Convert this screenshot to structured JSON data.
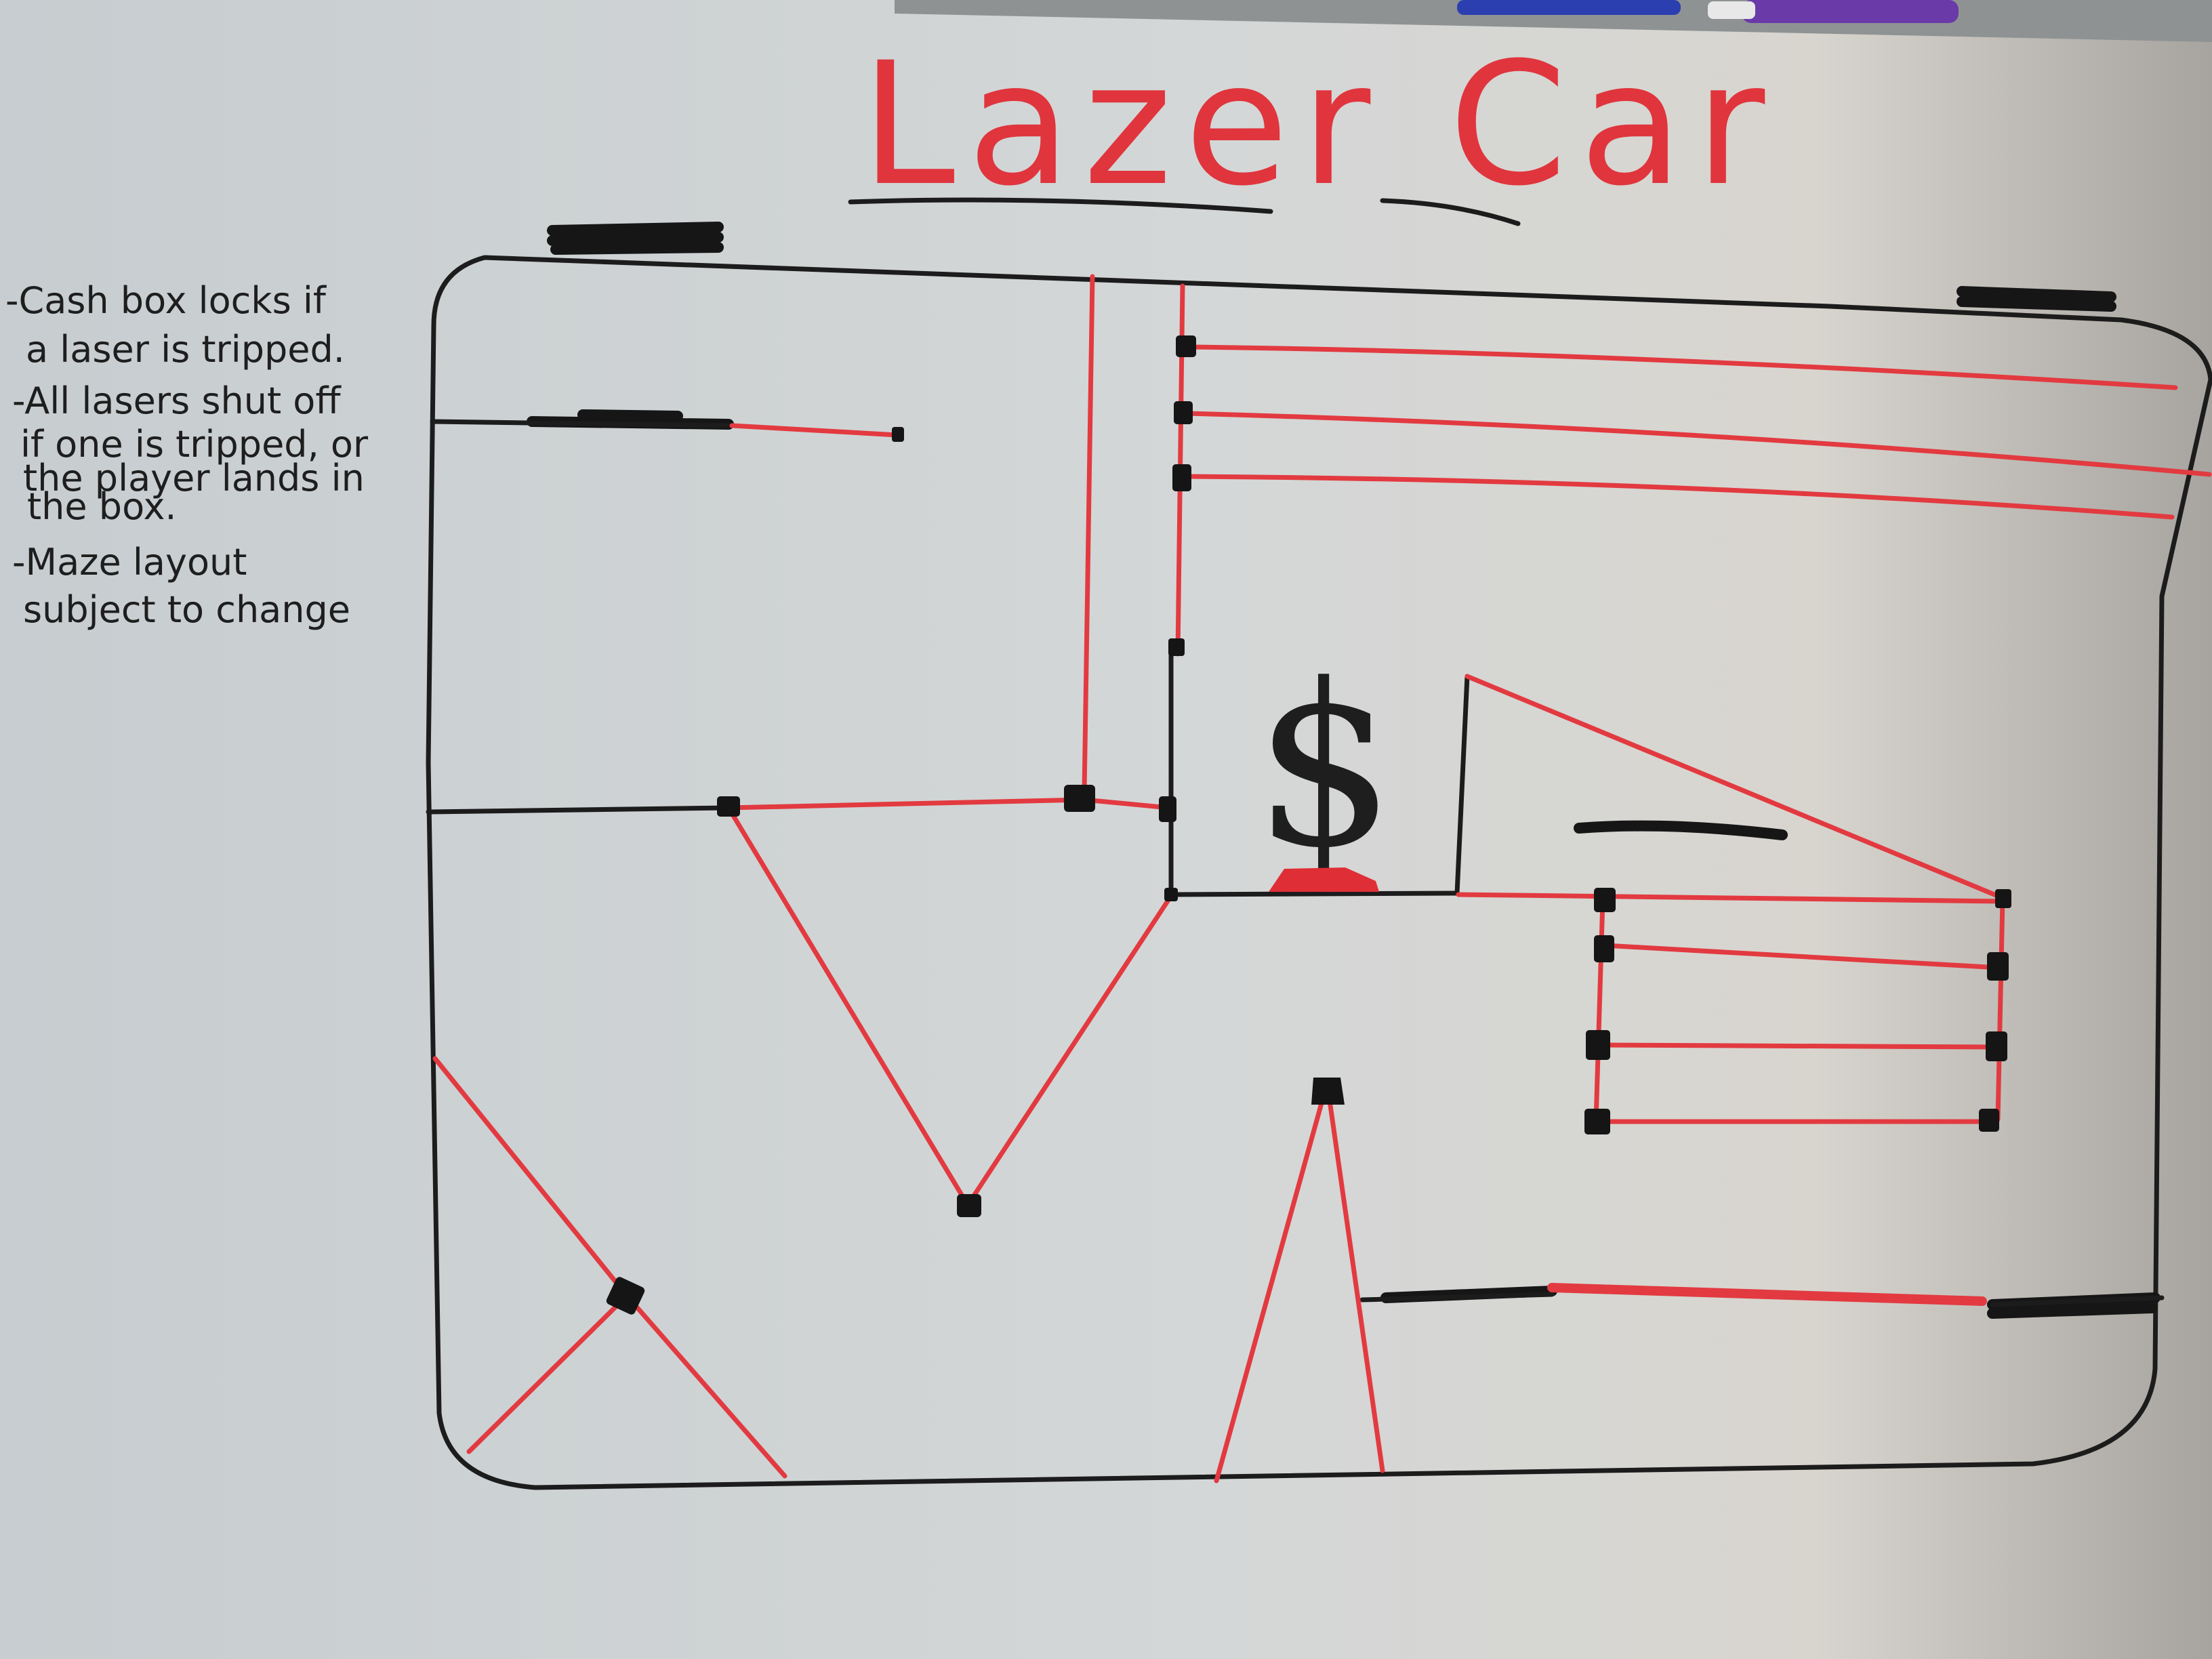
{
  "title": "Lazer Car",
  "notes": [
    "-Cash box locks if",
    "a laser is tripped.",
    "-All lasers shut off",
    "if one is tripped, or",
    "the player lands in",
    "the box.",
    "-Maze layout",
    "subject to change"
  ],
  "cash_symbol": "$",
  "colors": {
    "board": "#c9ced0",
    "laser": "#e23a40",
    "marker": "#1c1c1c",
    "title": "#e0353d"
  }
}
